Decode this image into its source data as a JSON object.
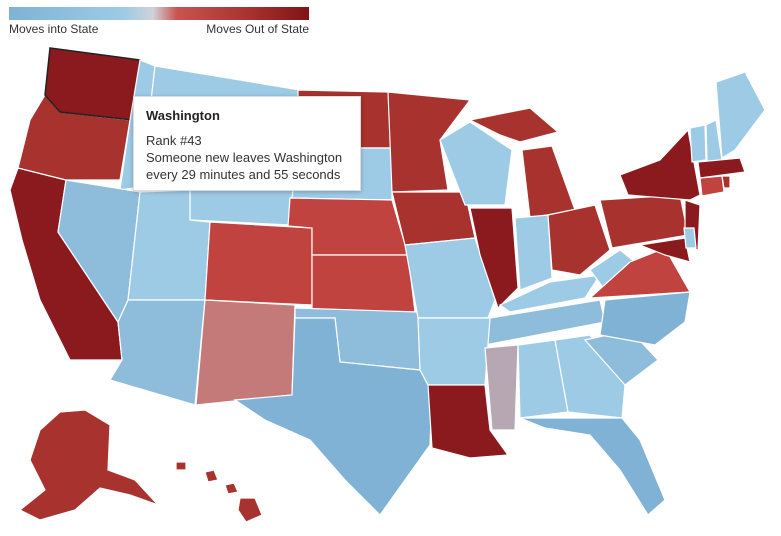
{
  "legend": {
    "left_label": "Moves into State",
    "right_label": "Moves Out of State"
  },
  "colors": {
    "dark_red": "#8b1a1e",
    "red": "#a7322e",
    "medium_red": "#c0433f",
    "light_red": "#c9544f",
    "salmon": "#c47a78",
    "mauve": "#b7a7b3",
    "light_blue": "#9dcbe6",
    "medium_blue": "#8ebddb",
    "blue": "#7fb2d4"
  },
  "tooltip": {
    "title": "Washington",
    "rank": "Rank #43",
    "detail_line1": "Someone new leaves Washington",
    "detail_line2": "every 29 minutes and 55 seconds"
  }
}
